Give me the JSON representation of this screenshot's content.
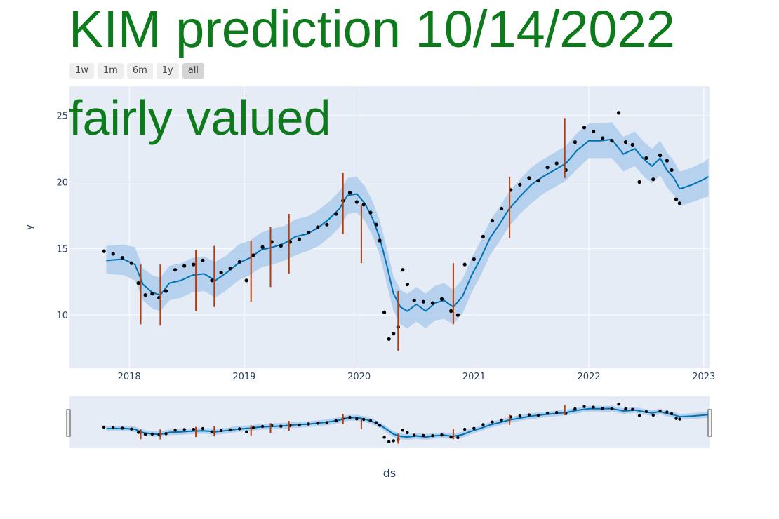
{
  "title": "KIM prediction 10/14/2022",
  "status": "fairly valued",
  "range_selector": {
    "buttons": [
      "1w",
      "1m",
      "6m",
      "1y",
      "all"
    ],
    "active": "all"
  },
  "colors": {
    "plot_bg": "#e5ecf6",
    "grid": "#ffffff",
    "forecast": "#0072b2",
    "band": "#a9cbeb",
    "actual": "#000000",
    "changepoint": "#b43b0b",
    "title": "#0d7a1c"
  },
  "chart_data": {
    "type": "line",
    "xlabel": "ds",
    "ylabel": "y",
    "xlim": [
      2017.48,
      2023.05
    ],
    "ylim": [
      6.0,
      27.2
    ],
    "x_ticks": [
      2018,
      2019,
      2020,
      2021,
      2022,
      2023
    ],
    "x_tick_labels": [
      "2018",
      "2019",
      "2020",
      "2021",
      "2022",
      "2023"
    ],
    "y_ticks": [
      10,
      15,
      20,
      25
    ],
    "y_tick_labels": [
      "10",
      "15",
      "20",
      "25"
    ],
    "grid": true,
    "forecast": {
      "x": [
        2017.8,
        2017.95,
        2018.05,
        2018.12,
        2018.2,
        2018.27,
        2018.35,
        2018.45,
        2018.55,
        2018.65,
        2018.75,
        2018.85,
        2018.95,
        2019.05,
        2019.15,
        2019.25,
        2019.35,
        2019.45,
        2019.55,
        2019.65,
        2019.75,
        2019.83,
        2019.9,
        2019.98,
        2020.05,
        2020.12,
        2020.18,
        2020.24,
        2020.3,
        2020.36,
        2020.42,
        2020.5,
        2020.58,
        2020.66,
        2020.74,
        2020.82,
        2020.9,
        2020.98,
        2021.06,
        2021.14,
        2021.22,
        2021.3,
        2021.4,
        2021.5,
        2021.6,
        2021.7,
        2021.8,
        2021.9,
        2022.0,
        2022.1,
        2022.2,
        2022.3,
        2022.4,
        2022.48,
        2022.55,
        2022.62,
        2022.68,
        2022.74,
        2022.79,
        2022.8,
        2022.9,
        2023.0,
        2023.04
      ],
      "y": [
        14.1,
        14.2,
        13.8,
        12.3,
        11.7,
        11.5,
        12.4,
        12.6,
        13.0,
        13.1,
        12.6,
        13.2,
        13.9,
        14.3,
        14.9,
        15.1,
        15.4,
        15.9,
        16.1,
        16.6,
        17.3,
        18.0,
        19.0,
        19.1,
        18.4,
        17.2,
        15.8,
        13.8,
        11.6,
        10.6,
        10.3,
        10.8,
        10.3,
        10.9,
        11.1,
        10.6,
        11.4,
        13.0,
        14.3,
        15.8,
        16.8,
        17.9,
        18.9,
        19.8,
        20.4,
        20.9,
        21.4,
        22.4,
        23.1,
        23.1,
        23.2,
        22.1,
        22.5,
        21.7,
        21.2,
        21.8,
        20.9,
        20.3,
        19.5,
        19.5,
        19.8,
        20.2,
        20.4
      ],
      "lower": [
        13.1,
        13.0,
        12.6,
        11.1,
        10.5,
        10.3,
        11.1,
        11.3,
        11.7,
        11.8,
        11.3,
        11.9,
        12.6,
        13.0,
        13.6,
        13.8,
        14.1,
        14.5,
        14.8,
        15.2,
        15.9,
        16.6,
        17.6,
        17.7,
        17.1,
        15.9,
        14.5,
        12.4,
        10.3,
        9.3,
        9.0,
        9.5,
        9.0,
        9.6,
        9.7,
        9.3,
        10.1,
        11.7,
        13.0,
        14.5,
        15.5,
        16.6,
        17.6,
        18.4,
        19.1,
        19.6,
        20.1,
        21.0,
        21.8,
        21.8,
        21.8,
        20.8,
        21.2,
        20.4,
        19.9,
        20.5,
        19.6,
        19.0,
        18.2,
        18.2,
        18.5,
        18.8,
        18.9
      ],
      "upper": [
        15.2,
        15.3,
        15.1,
        13.5,
        13.0,
        12.8,
        13.7,
        13.9,
        14.3,
        14.4,
        14.0,
        14.5,
        15.3,
        15.6,
        16.2,
        16.5,
        16.7,
        17.2,
        17.4,
        17.9,
        18.6,
        19.3,
        20.3,
        20.4,
        19.7,
        18.5,
        17.1,
        15.1,
        12.9,
        11.9,
        11.6,
        12.1,
        11.6,
        12.2,
        12.4,
        11.9,
        12.7,
        14.3,
        15.6,
        17.1,
        18.1,
        19.2,
        20.2,
        21.1,
        21.7,
        22.2,
        22.7,
        23.7,
        24.4,
        24.4,
        24.5,
        23.4,
        23.8,
        23.0,
        22.5,
        23.1,
        22.2,
        21.6,
        20.8,
        20.8,
        21.1,
        21.5,
        21.8
      ]
    },
    "actual": {
      "x": [
        2017.78,
        2017.86,
        2017.94,
        2018.02,
        2018.08,
        2018.14,
        2018.2,
        2018.26,
        2018.32,
        2018.4,
        2018.48,
        2018.56,
        2018.64,
        2018.72,
        2018.8,
        2018.88,
        2018.96,
        2019.02,
        2019.08,
        2019.16,
        2019.24,
        2019.32,
        2019.4,
        2019.48,
        2019.56,
        2019.64,
        2019.72,
        2019.8,
        2019.86,
        2019.92,
        2019.98,
        2020.04,
        2020.1,
        2020.15,
        2020.18,
        2020.22,
        2020.26,
        2020.3,
        2020.34,
        2020.38,
        2020.42,
        2020.48,
        2020.56,
        2020.64,
        2020.72,
        2020.8,
        2020.86,
        2020.92,
        2021.0,
        2021.08,
        2021.16,
        2021.24,
        2021.32,
        2021.4,
        2021.48,
        2021.56,
        2021.64,
        2021.72,
        2021.8,
        2021.88,
        2021.96,
        2022.04,
        2022.12,
        2022.2,
        2022.26,
        2022.32,
        2022.38,
        2022.44,
        2022.5,
        2022.56,
        2022.62,
        2022.68,
        2022.72,
        2022.76,
        2022.79
      ],
      "y": [
        14.8,
        14.6,
        14.3,
        13.9,
        12.4,
        11.5,
        11.6,
        11.3,
        11.8,
        13.4,
        13.7,
        13.8,
        14.1,
        12.6,
        13.2,
        13.5,
        14.0,
        12.6,
        14.5,
        15.1,
        15.5,
        15.2,
        15.5,
        15.7,
        16.2,
        16.6,
        16.8,
        17.6,
        18.6,
        19.2,
        18.5,
        18.3,
        17.7,
        16.8,
        15.6,
        10.2,
        8.2,
        8.6,
        9.1,
        13.4,
        12.3,
        11.1,
        11.0,
        10.9,
        11.2,
        10.3,
        10.0,
        13.8,
        14.2,
        15.9,
        17.1,
        18.0,
        19.4,
        19.8,
        20.3,
        20.1,
        21.1,
        21.4,
        20.9,
        23.0,
        24.1,
        23.8,
        23.3,
        23.1,
        25.2,
        23.0,
        22.8,
        20.0,
        21.8,
        20.2,
        22.0,
        21.6,
        20.9,
        18.7,
        18.4
      ]
    },
    "changepoints": {
      "x": [
        2018.1,
        2018.27,
        2018.58,
        2018.74,
        2019.06,
        2019.23,
        2019.39,
        2019.86,
        2020.02,
        2020.34,
        2020.82,
        2021.31,
        2021.79
      ],
      "y_low": [
        9.3,
        9.2,
        10.3,
        10.6,
        11.0,
        12.1,
        13.1,
        16.1,
        13.9,
        7.3,
        9.3,
        15.8,
        20.3
      ],
      "y_high": [
        13.8,
        13.8,
        14.9,
        15.2,
        15.6,
        16.6,
        17.6,
        20.7,
        18.3,
        11.8,
        13.9,
        20.4,
        24.8
      ]
    }
  }
}
